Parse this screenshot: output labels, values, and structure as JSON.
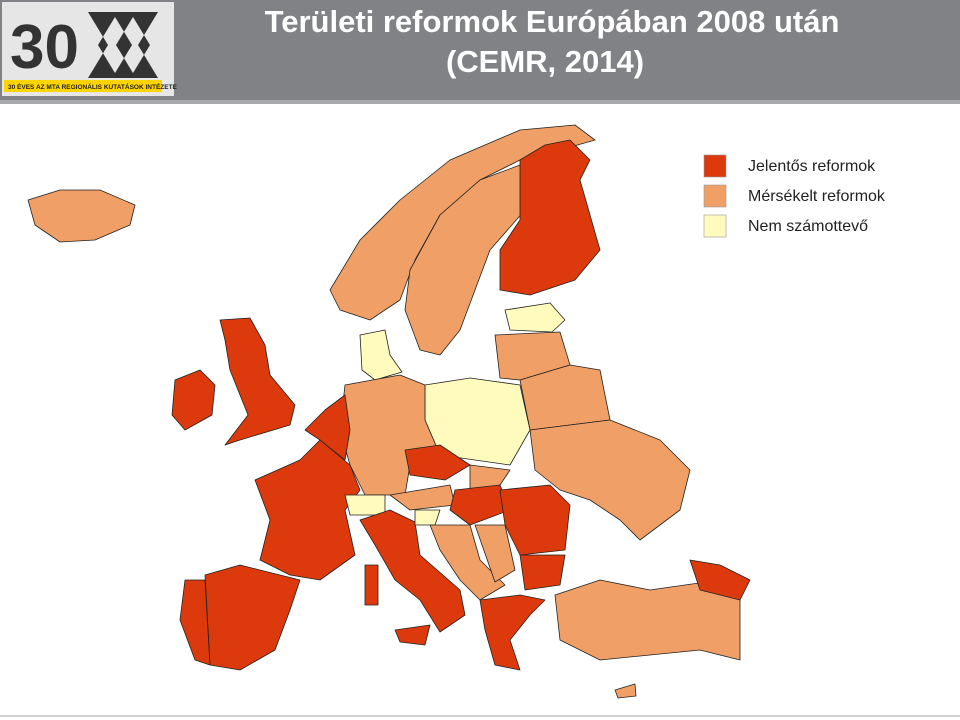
{
  "header": {
    "title_lines": [
      "Területi reformok Európában 2008 után",
      "(CEMR, 2014)"
    ],
    "logo": {
      "number": "30",
      "caption": "30 ÉVES AZ MTA REGIONÁLIS KUTATÁSOK INTÉZETE"
    }
  },
  "legend": {
    "items": [
      {
        "label": "Jelentős reformok",
        "color": "#dc3a0c"
      },
      {
        "label": "Mérsékelt reformok",
        "color": "#f0a066"
      },
      {
        "label": "Nem számottevő",
        "color": "#fffbbd"
      }
    ]
  }
}
